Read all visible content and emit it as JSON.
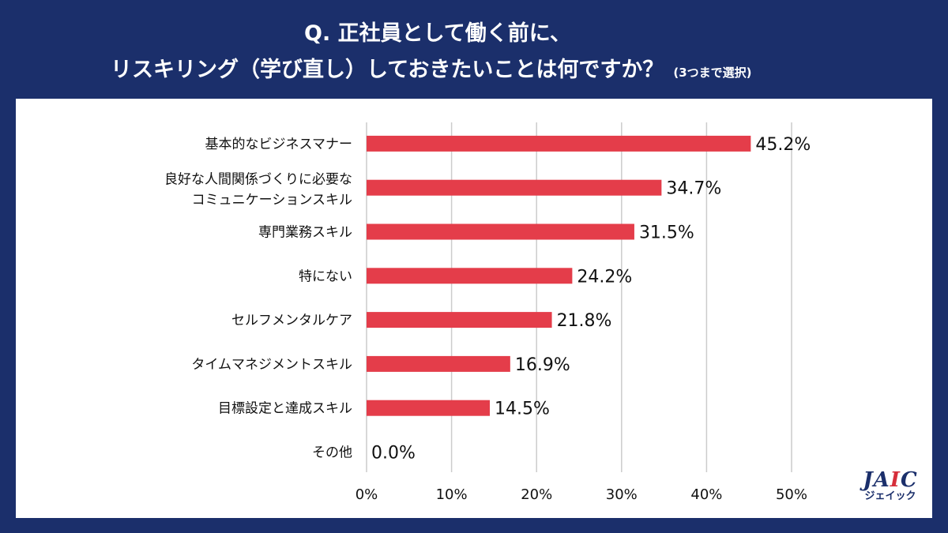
{
  "title": {
    "line1": "Q. 正社員として働く前に、",
    "line2": "リスキリング（学び直し）しておきたいことは何ですか？",
    "note": "(3つまで選択)"
  },
  "logo": {
    "brand_prefix": "JA",
    "brand_i": "I",
    "brand_suffix": "C",
    "kana": "ジェイック"
  },
  "colors": {
    "background": "#1b2f6b",
    "bar": "#e43d4a",
    "grid": "#cccccc"
  },
  "chart_data": {
    "type": "bar",
    "orientation": "horizontal",
    "title": "Q. 正社員として働く前に、リスキリング（学び直し）しておきたいことは何ですか？",
    "categories": [
      [
        "基本的なビジネスマナー"
      ],
      [
        "良好な人間関係づくりに必要な",
        "コミュニケーションスキル"
      ],
      [
        "専門業務スキル"
      ],
      [
        "特にない"
      ],
      [
        "セルフメンタルケア"
      ],
      [
        "タイムマネジメントスキル"
      ],
      [
        "目標設定と達成スキル"
      ],
      [
        "その他"
      ]
    ],
    "values": [
      45.2,
      34.7,
      31.5,
      24.2,
      21.8,
      16.9,
      14.5,
      0.0
    ],
    "value_labels": [
      "45.2%",
      "34.7%",
      "31.5%",
      "24.2%",
      "21.8%",
      "16.9%",
      "14.5%",
      "0.0%"
    ],
    "xlim": [
      0,
      50
    ],
    "xticks": [
      0,
      10,
      20,
      30,
      40,
      50
    ],
    "xtick_labels": [
      "0%",
      "10%",
      "20%",
      "30%",
      "40%",
      "50%"
    ],
    "grid": true
  }
}
